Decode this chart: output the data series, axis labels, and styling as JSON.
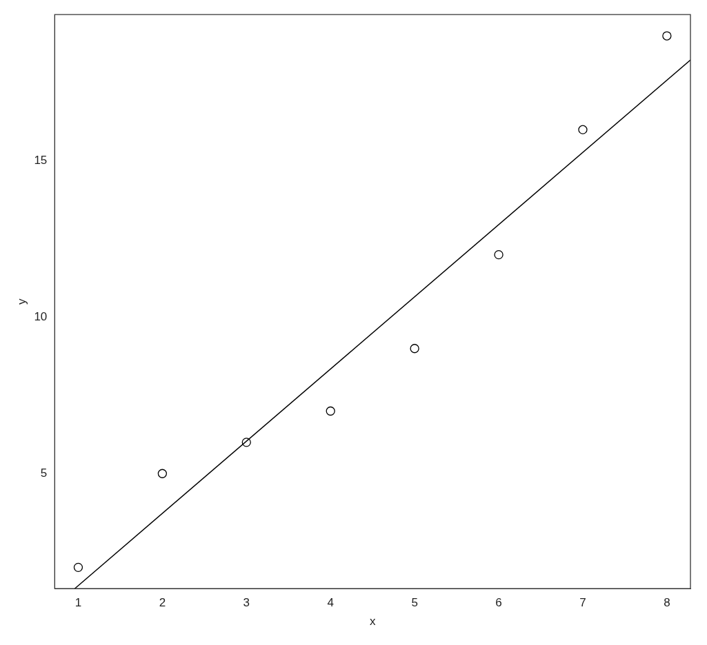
{
  "chart_data": {
    "type": "scatter",
    "xlabel": "x",
    "ylabel": "y",
    "xlim": [
      0.72,
      8.28
    ],
    "ylim": [
      1.32,
      19.68
    ],
    "xticks": [
      1,
      2,
      3,
      4,
      5,
      6,
      7,
      8
    ],
    "yticks": [
      5,
      10,
      15
    ],
    "series": [
      {
        "color": "#000000",
        "marker": "circle",
        "x": [
          1,
          2,
          3,
          4,
          5,
          6,
          7,
          8
        ],
        "values": [
          2,
          5,
          6,
          7,
          9,
          12,
          16,
          19
        ]
      },
      {
        "type": "line",
        "color": "#000000",
        "marker": "none",
        "x": [
          0.958,
          8.28
        ],
        "values": [
          1.32,
          18.23
        ]
      }
    ]
  }
}
